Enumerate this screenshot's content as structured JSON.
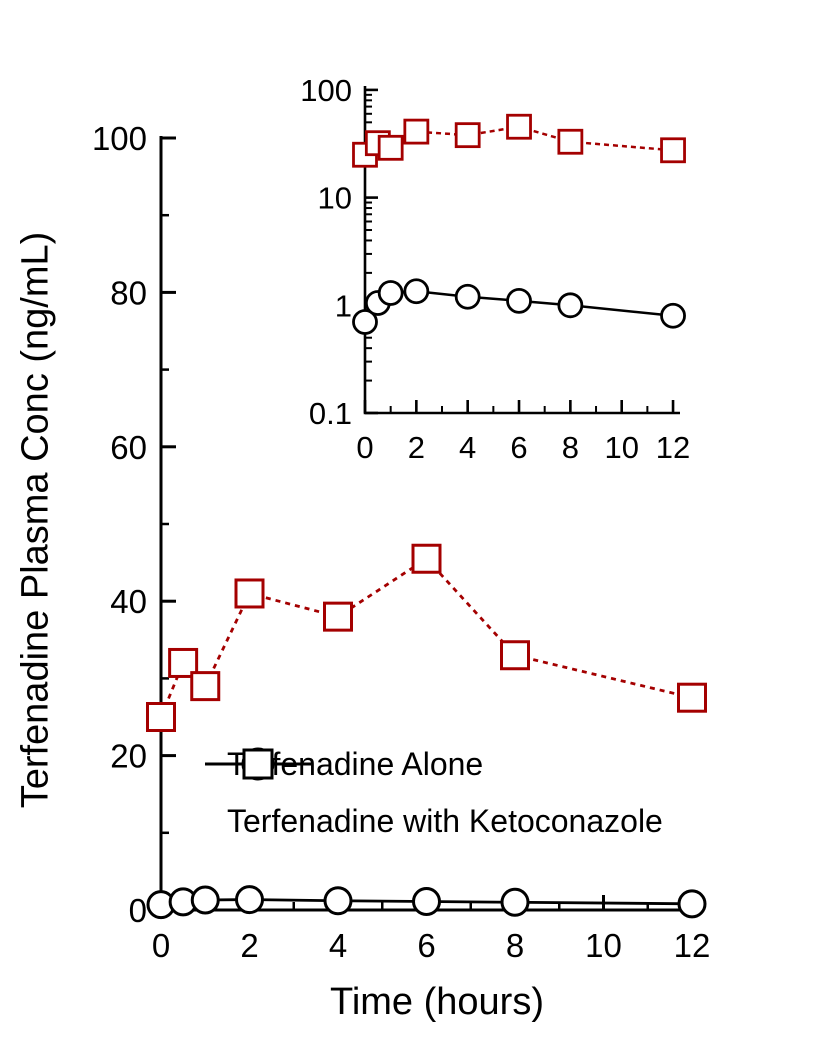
{
  "colors": {
    "terfenadine_alone": "#000000",
    "terfenadine_with_ketoconazole": "#a40000",
    "background": "#ffffff"
  },
  "legend": {
    "items": [
      {
        "label": "Terfenadine Alone",
        "marker": "circle",
        "line": "solid",
        "color": "#000000"
      },
      {
        "label": "Terfenadine with Ketoconazole",
        "marker": "square",
        "line": "dashed",
        "color": "#000000"
      }
    ]
  },
  "chart_data": [
    {
      "id": "main",
      "type": "line",
      "title": "",
      "xlabel": "Time (hours)",
      "ylabel": "Terfenadine Plasma Conc (ng/mL)",
      "yscale": "linear",
      "xlim": [
        0,
        12
      ],
      "ylim": [
        0,
        100
      ],
      "x_major_ticks": [
        0,
        2,
        4,
        6,
        8,
        10,
        12
      ],
      "x_minor_ticks": [
        1,
        3,
        5,
        7,
        9,
        11
      ],
      "y_major_ticks": [
        0,
        20,
        40,
        60,
        80,
        100
      ],
      "y_minor_ticks": [
        10,
        30,
        50,
        70,
        90
      ],
      "grid": false,
      "legend_position": "inside-lower-left",
      "x": [
        0,
        0.5,
        1,
        2,
        4,
        6,
        8,
        12
      ],
      "series": [
        {
          "name": "Terfenadine Alone",
          "marker": "circle",
          "line_style": "solid",
          "color": "#000000",
          "values": [
            0.7,
            1.05,
            1.3,
            1.35,
            1.2,
            1.1,
            1.0,
            0.8
          ]
        },
        {
          "name": "Terfenadine with Ketoconazole",
          "marker": "square",
          "line_style": "dashed",
          "color": "#a40000",
          "values": [
            25,
            32,
            29,
            41,
            38,
            45.5,
            33,
            27.5
          ]
        }
      ]
    },
    {
      "id": "inset",
      "type": "line",
      "title": "",
      "xlabel": "",
      "ylabel": "",
      "yscale": "log",
      "xlim": [
        0,
        12
      ],
      "ylim": [
        0.1,
        100
      ],
      "x_major_ticks": [
        0,
        2,
        4,
        6,
        8,
        10,
        12
      ],
      "x_minor_ticks": [
        1,
        3,
        5,
        7,
        9,
        11
      ],
      "y_major_ticks": [
        0.1,
        1,
        10,
        100
      ],
      "y_major_tick_labels": [
        "0.1",
        "1",
        "10",
        "100"
      ],
      "grid": false,
      "x": [
        0,
        0.5,
        1,
        2,
        4,
        6,
        8,
        12
      ],
      "series": [
        {
          "name": "Terfenadine Alone",
          "marker": "circle",
          "line_style": "solid",
          "color": "#000000",
          "values": [
            0.7,
            1.05,
            1.3,
            1.35,
            1.2,
            1.1,
            1.0,
            0.8
          ]
        },
        {
          "name": "Terfenadine with Ketoconazole",
          "marker": "square",
          "line_style": "dashed",
          "color": "#a40000",
          "values": [
            25,
            32,
            29,
            41,
            38,
            45.5,
            33,
            27.5
          ]
        }
      ]
    }
  ]
}
